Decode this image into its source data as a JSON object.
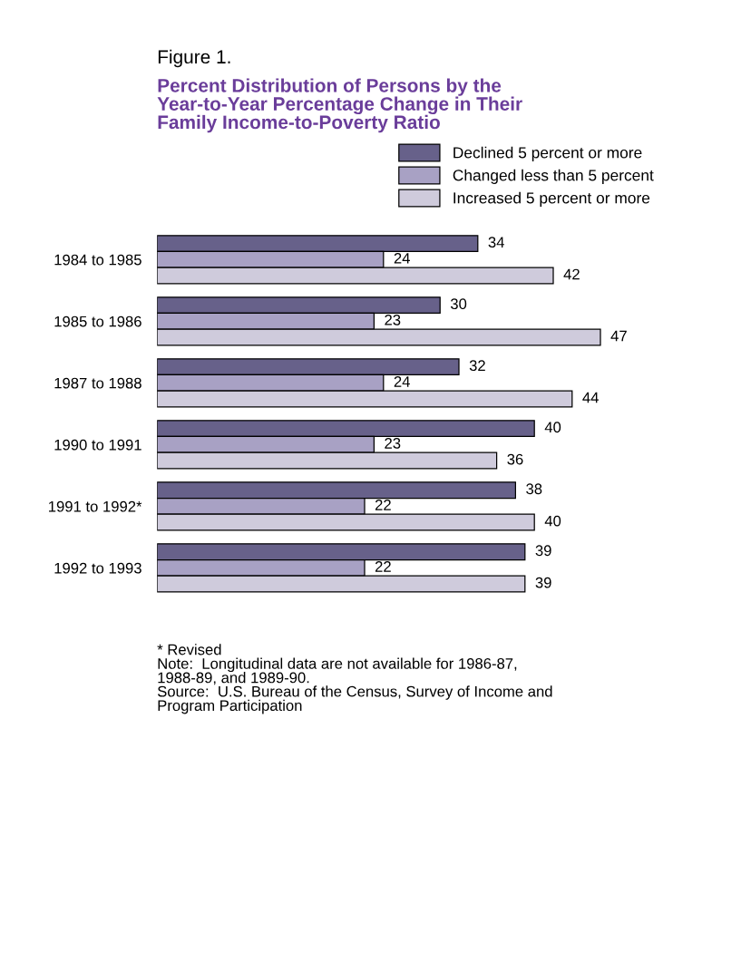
{
  "chart_data": {
    "type": "bar",
    "orientation": "horizontal",
    "title": "Figure 1.",
    "subtitle": "Percent Distribution of Persons by the\nYear-to-Year Percentage Change in Their\nFamily Income-to-Poverty Ratio",
    "categories": [
      "1984 to 1985",
      "1985 to 1986",
      "1987 to 1988",
      "1990 to 1991",
      "1991 to 1992*",
      "1992 to 1993"
    ],
    "series": [
      {
        "name": "Declined 5 percent or more",
        "color": "#67618a",
        "values": [
          34,
          30,
          32,
          40,
          38,
          39
        ]
      },
      {
        "name": "Changed less than 5 percent",
        "color": "#a8a1c4",
        "values": [
          24,
          23,
          24,
          23,
          22,
          22
        ]
      },
      {
        "name": "Increased 5 percent or more",
        "color": "#cfcbdc",
        "values": [
          42,
          47,
          44,
          36,
          40,
          39
        ]
      }
    ],
    "data_labels": true,
    "legend": "top right",
    "grid": false,
    "tick_labels": "y",
    "annotations": [
      "* Revised",
      "Note:  Longitudinal data are not available for 1986-87,\n1988-89, and 1989-90.",
      "Source:  U.S. Bureau of the Census, Survey of Income and\nProgram Participation"
    ]
  }
}
